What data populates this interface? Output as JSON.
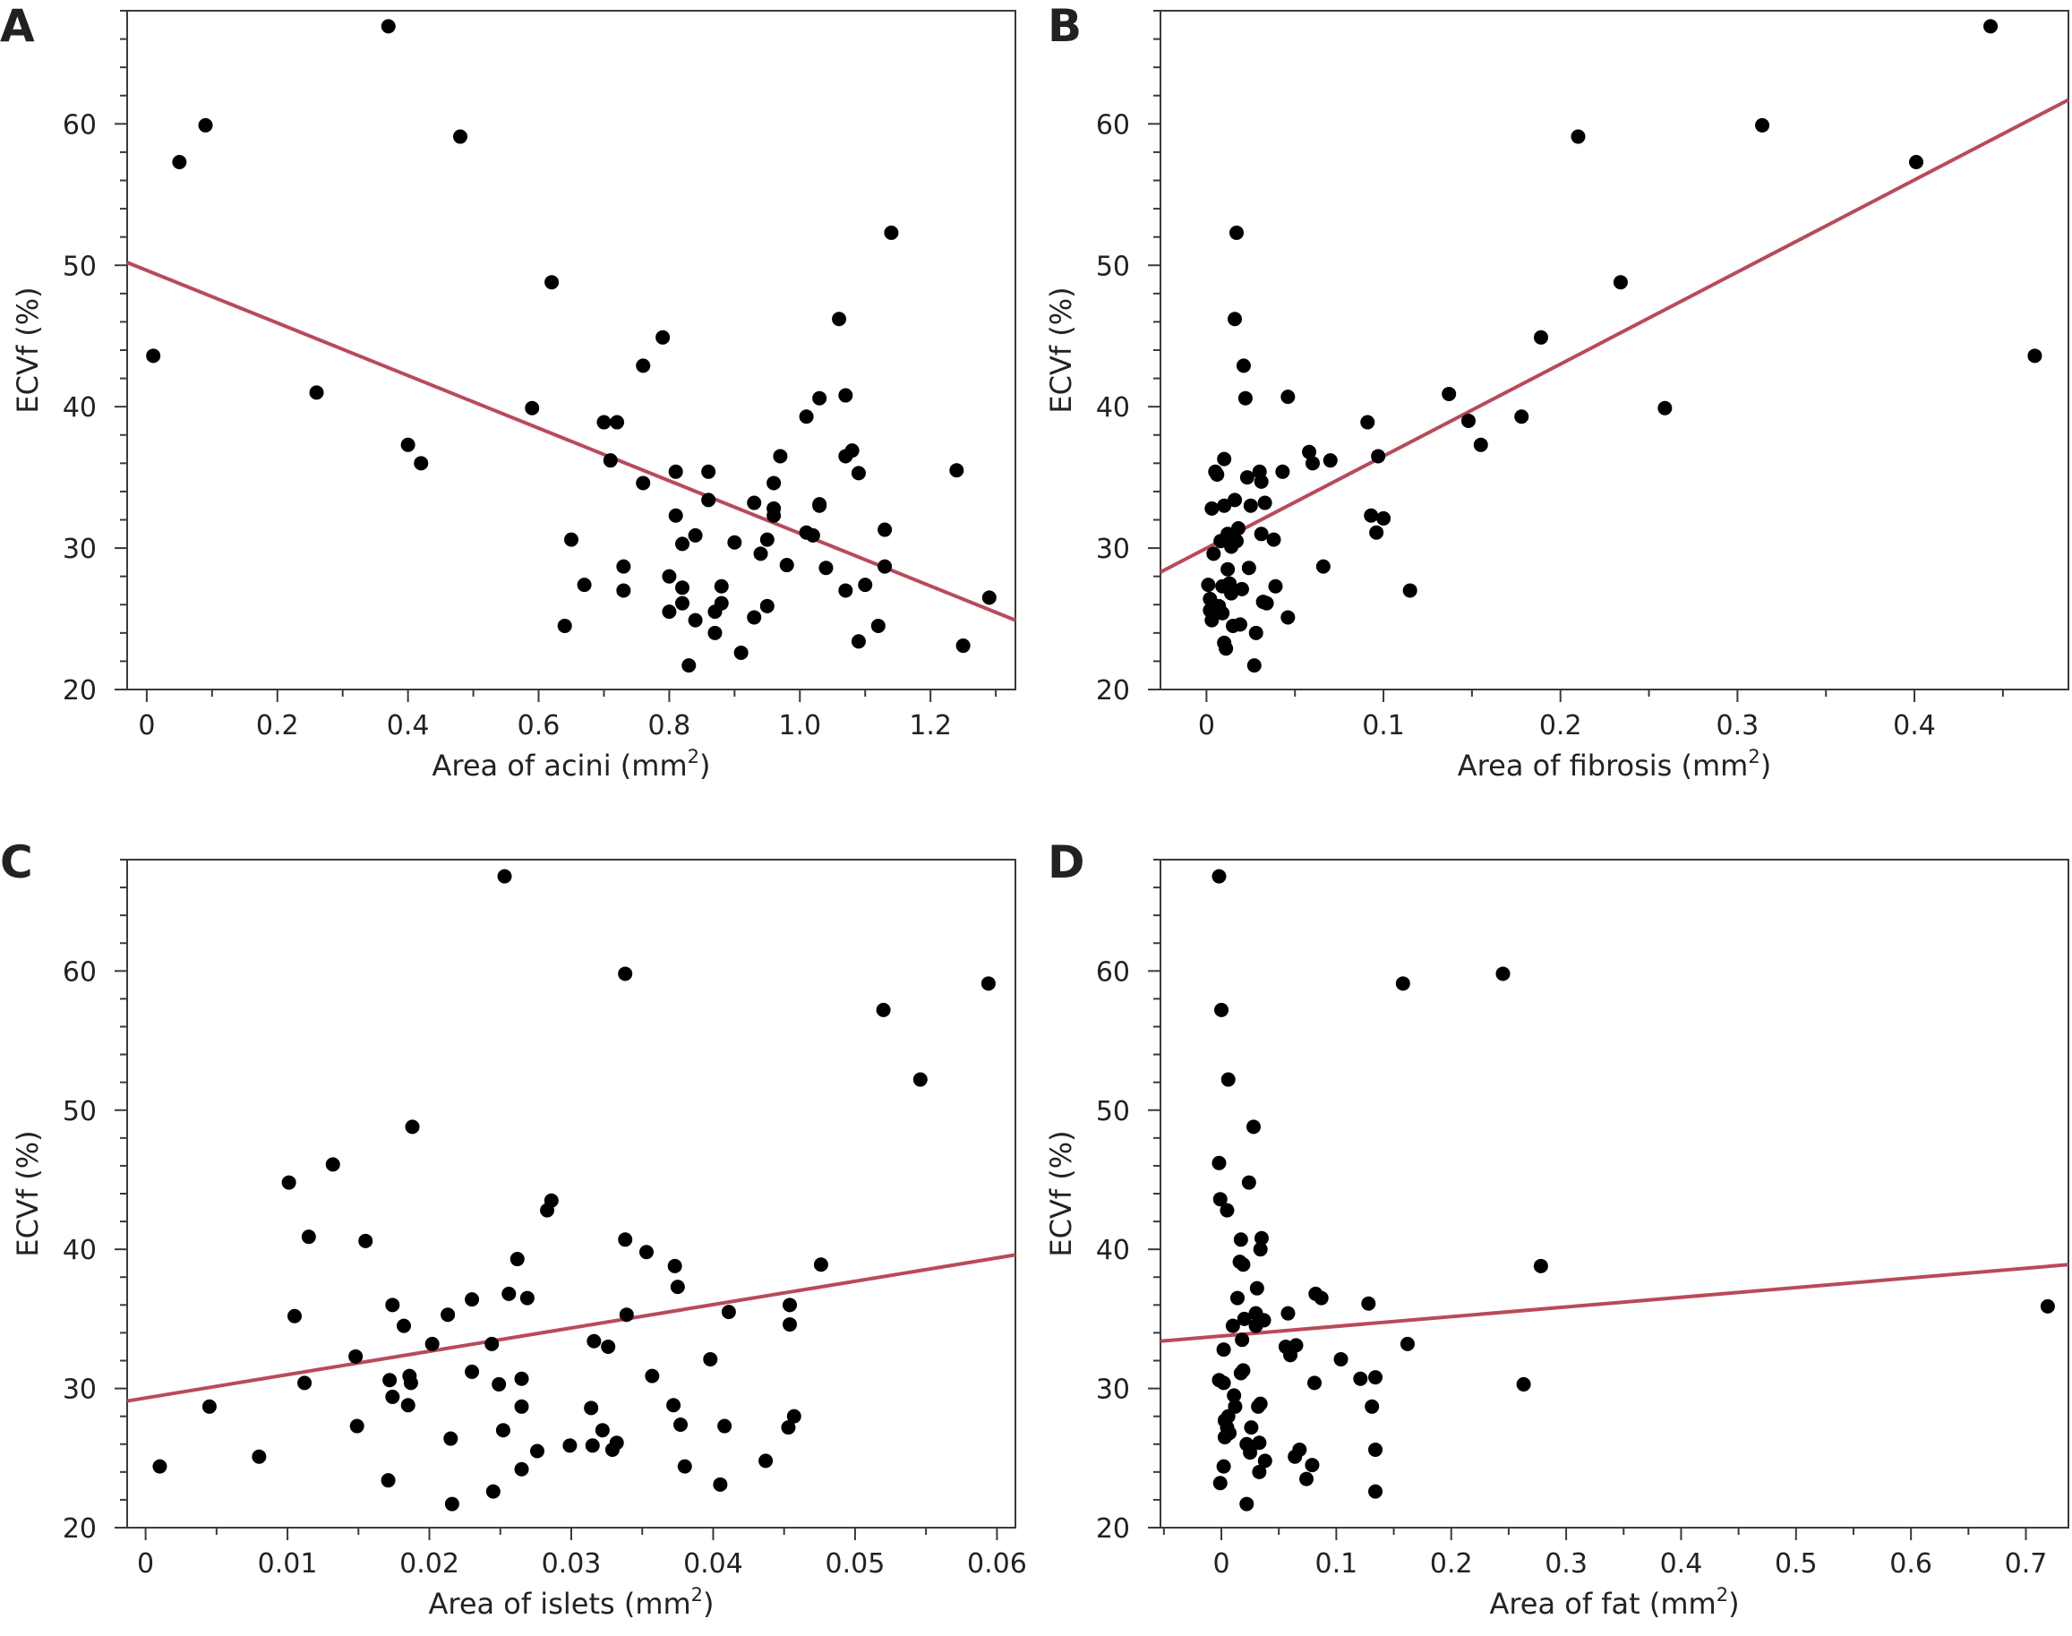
{
  "colors": {
    "points": "#000000",
    "fit_line": "#b94a5a",
    "axes": "#3a3a3a",
    "text": "#222222"
  },
  "chart_data": [
    {
      "type": "scatter",
      "panel": "A",
      "xlabel": "Area of acini (mm",
      "xlabel_sup": "2",
      "xlabel_end": ")",
      "ylabel": "ECVf (%)",
      "xlim": [
        -0.03,
        1.33
      ],
      "ylim": [
        20,
        68
      ],
      "xticks": [
        0,
        0.2,
        0.4,
        0.6,
        0.8,
        1.0,
        1.2
      ],
      "xtick_labels": [
        "0",
        "0.2",
        "0.4",
        "0.6",
        "0.8",
        "1.0",
        "1.2"
      ],
      "yticks": [
        20,
        30,
        40,
        50,
        60
      ],
      "ytick_labels": [
        "20",
        "30",
        "40",
        "50",
        "60"
      ],
      "fit_line": [
        [
          -0.03,
          50.2
        ],
        [
          1.33,
          24.9
        ]
      ],
      "points": [
        [
          0.01,
          43.6
        ],
        [
          0.05,
          57.3
        ],
        [
          0.09,
          59.9
        ],
        [
          0.26,
          41.0
        ],
        [
          0.37,
          66.9
        ],
        [
          0.4,
          37.3
        ],
        [
          0.42,
          36.0
        ],
        [
          0.48,
          59.1
        ],
        [
          0.59,
          39.9
        ],
        [
          0.62,
          48.8
        ],
        [
          0.64,
          24.5
        ],
        [
          0.65,
          30.6
        ],
        [
          0.67,
          27.4
        ],
        [
          0.7,
          38.9
        ],
        [
          0.71,
          36.2
        ],
        [
          0.72,
          38.9
        ],
        [
          0.73,
          28.7
        ],
        [
          0.73,
          27.0
        ],
        [
          0.76,
          34.6
        ],
        [
          0.76,
          42.9
        ],
        [
          0.79,
          44.9
        ],
        [
          0.8,
          25.5
        ],
        [
          0.8,
          28.0
        ],
        [
          0.81,
          32.3
        ],
        [
          0.81,
          35.4
        ],
        [
          0.82,
          27.2
        ],
        [
          0.82,
          30.3
        ],
        [
          0.82,
          26.1
        ],
        [
          0.83,
          21.7
        ],
        [
          0.84,
          30.9
        ],
        [
          0.84,
          24.9
        ],
        [
          0.86,
          33.4
        ],
        [
          0.86,
          35.4
        ],
        [
          0.87,
          24.0
        ],
        [
          0.87,
          25.5
        ],
        [
          0.88,
          26.1
        ],
        [
          0.88,
          27.3
        ],
        [
          0.9,
          30.4
        ],
        [
          0.91,
          22.6
        ],
        [
          0.93,
          33.2
        ],
        [
          0.93,
          25.1
        ],
        [
          0.94,
          29.6
        ],
        [
          0.95,
          30.6
        ],
        [
          0.95,
          25.9
        ],
        [
          0.96,
          32.8
        ],
        [
          0.96,
          34.6
        ],
        [
          0.97,
          36.5
        ],
        [
          0.96,
          32.3
        ],
        [
          0.98,
          28.8
        ],
        [
          1.01,
          39.3
        ],
        [
          1.01,
          31.1
        ],
        [
          1.02,
          30.9
        ],
        [
          1.03,
          40.6
        ],
        [
          1.03,
          33.1
        ],
        [
          1.03,
          33.0
        ],
        [
          1.04,
          28.6
        ],
        [
          1.06,
          46.2
        ],
        [
          1.07,
          40.8
        ],
        [
          1.07,
          36.5
        ],
        [
          1.08,
          36.9
        ],
        [
          1.07,
          27.0
        ],
        [
          1.09,
          35.3
        ],
        [
          1.09,
          23.4
        ],
        [
          1.1,
          27.4
        ],
        [
          1.12,
          24.5
        ],
        [
          1.13,
          28.7
        ],
        [
          1.13,
          31.3
        ],
        [
          1.14,
          52.3
        ],
        [
          1.24,
          35.5
        ],
        [
          1.25,
          23.1
        ],
        [
          1.29,
          26.5
        ]
      ]
    },
    {
      "type": "scatter",
      "panel": "B",
      "xlabel": "Area of fibrosis (mm",
      "xlabel_sup": "2",
      "xlabel_end": ")",
      "ylabel": "ECVf (%)",
      "xlim": [
        -0.026,
        0.487
      ],
      "ylim": [
        20,
        68
      ],
      "xticks": [
        0,
        0.1,
        0.2,
        0.3,
        0.4
      ],
      "xtick_labels": [
        "0",
        "0.1",
        "0.2",
        "0.3",
        "0.4"
      ],
      "yticks": [
        20,
        30,
        40,
        50,
        60
      ],
      "ytick_labels": [
        "20",
        "30",
        "40",
        "50",
        "60"
      ],
      "fit_line": [
        [
          -0.026,
          28.3
        ],
        [
          0.487,
          61.7
        ]
      ],
      "points": [
        [
          0.001,
          27.4
        ],
        [
          0.002,
          25.6
        ],
        [
          0.002,
          26.4
        ],
        [
          0.003,
          24.9
        ],
        [
          0.003,
          32.8
        ],
        [
          0.004,
          29.6
        ],
        [
          0.005,
          35.4
        ],
        [
          0.006,
          35.2
        ],
        [
          0.007,
          25.9
        ],
        [
          0.008,
          30.5
        ],
        [
          0.009,
          25.4
        ],
        [
          0.009,
          27.3
        ],
        [
          0.01,
          33.0
        ],
        [
          0.01,
          36.3
        ],
        [
          0.01,
          23.3
        ],
        [
          0.011,
          22.9
        ],
        [
          0.012,
          31.0
        ],
        [
          0.012,
          28.5
        ],
        [
          0.013,
          27.5
        ],
        [
          0.014,
          26.8
        ],
        [
          0.014,
          30.1
        ],
        [
          0.015,
          24.5
        ],
        [
          0.016,
          33.4
        ],
        [
          0.016,
          46.2
        ],
        [
          0.017,
          52.3
        ],
        [
          0.017,
          30.5
        ],
        [
          0.018,
          31.4
        ],
        [
          0.019,
          24.6
        ],
        [
          0.02,
          27.1
        ],
        [
          0.021,
          42.9
        ],
        [
          0.022,
          40.6
        ],
        [
          0.023,
          35.0
        ],
        [
          0.024,
          28.6
        ],
        [
          0.025,
          33.0
        ],
        [
          0.027,
          21.7
        ],
        [
          0.028,
          24.0
        ],
        [
          0.03,
          35.4
        ],
        [
          0.031,
          31.0
        ],
        [
          0.031,
          34.7
        ],
        [
          0.032,
          26.2
        ],
        [
          0.033,
          33.2
        ],
        [
          0.034,
          26.1
        ],
        [
          0.038,
          30.6
        ],
        [
          0.039,
          27.3
        ],
        [
          0.043,
          35.4
        ],
        [
          0.046,
          25.1
        ],
        [
          0.046,
          40.7
        ],
        [
          0.058,
          36.8
        ],
        [
          0.06,
          36.0
        ],
        [
          0.066,
          28.7
        ],
        [
          0.07,
          36.2
        ],
        [
          0.091,
          38.9
        ],
        [
          0.093,
          32.3
        ],
        [
          0.096,
          31.1
        ],
        [
          0.097,
          36.5
        ],
        [
          0.1,
          32.1
        ],
        [
          0.115,
          27.0
        ],
        [
          0.137,
          40.9
        ],
        [
          0.148,
          39.0
        ],
        [
          0.155,
          37.3
        ],
        [
          0.178,
          39.3
        ],
        [
          0.189,
          44.9
        ],
        [
          0.21,
          59.1
        ],
        [
          0.234,
          48.8
        ],
        [
          0.259,
          39.9
        ],
        [
          0.314,
          59.9
        ],
        [
          0.401,
          57.3
        ],
        [
          0.443,
          66.9
        ],
        [
          0.468,
          43.6
        ]
      ]
    },
    {
      "type": "scatter",
      "panel": "C",
      "xlabel": "Area of islets (mm",
      "xlabel_sup": "2",
      "xlabel_end": ")",
      "ylabel": "ECVf (%)",
      "xlim": [
        -0.0013,
        0.0613
      ],
      "ylim": [
        20,
        68
      ],
      "xticks": [
        0,
        0.01,
        0.02,
        0.03,
        0.04,
        0.05,
        0.06
      ],
      "xtick_labels": [
        "0",
        "0.01",
        "0.02",
        "0.03",
        "0.04",
        "0.05",
        "0.06"
      ],
      "yticks": [
        20,
        30,
        40,
        50,
        60
      ],
      "ytick_labels": [
        "20",
        "30",
        "40",
        "50",
        "60"
      ],
      "fit_line": [
        [
          -0.0013,
          29.1
        ],
        [
          0.0613,
          39.6
        ]
      ],
      "points": [
        [
          0.001,
          24.4
        ],
        [
          0.0045,
          28.7
        ],
        [
          0.008,
          25.1
        ],
        [
          0.0101,
          44.8
        ],
        [
          0.0105,
          35.2
        ],
        [
          0.0112,
          30.4
        ],
        [
          0.0115,
          40.9
        ],
        [
          0.0132,
          46.1
        ],
        [
          0.0148,
          32.3
        ],
        [
          0.0149,
          27.3
        ],
        [
          0.0155,
          40.6
        ],
        [
          0.0171,
          23.4
        ],
        [
          0.0172,
          30.6
        ],
        [
          0.0174,
          36.0
        ],
        [
          0.0174,
          29.4
        ],
        [
          0.0182,
          34.5
        ],
        [
          0.0185,
          28.8
        ],
        [
          0.0186,
          30.9
        ],
        [
          0.0187,
          30.4
        ],
        [
          0.0188,
          48.8
        ],
        [
          0.0202,
          33.2
        ],
        [
          0.0213,
          35.3
        ],
        [
          0.0215,
          26.4
        ],
        [
          0.0216,
          21.7
        ],
        [
          0.023,
          36.4
        ],
        [
          0.023,
          31.2
        ],
        [
          0.0244,
          33.2
        ],
        [
          0.0245,
          22.6
        ],
        [
          0.0249,
          30.3
        ],
        [
          0.0252,
          27.0
        ],
        [
          0.0253,
          66.8
        ],
        [
          0.0256,
          36.8
        ],
        [
          0.0262,
          39.3
        ],
        [
          0.0265,
          30.7
        ],
        [
          0.0265,
          28.7
        ],
        [
          0.0265,
          24.2
        ],
        [
          0.0269,
          36.5
        ],
        [
          0.0276,
          25.5
        ],
        [
          0.0283,
          42.8
        ],
        [
          0.0286,
          43.5
        ],
        [
          0.0299,
          25.9
        ],
        [
          0.0314,
          28.6
        ],
        [
          0.0315,
          25.9
        ],
        [
          0.0316,
          33.4
        ],
        [
          0.0322,
          27.0
        ],
        [
          0.0326,
          33.0
        ],
        [
          0.0329,
          25.6
        ],
        [
          0.0332,
          26.1
        ],
        [
          0.0338,
          59.8
        ],
        [
          0.0338,
          40.7
        ],
        [
          0.0339,
          35.3
        ],
        [
          0.0353,
          39.8
        ],
        [
          0.0357,
          30.9
        ],
        [
          0.0372,
          28.8
        ],
        [
          0.0373,
          38.8
        ],
        [
          0.0375,
          37.3
        ],
        [
          0.0377,
          27.4
        ],
        [
          0.038,
          24.4
        ],
        [
          0.0398,
          32.1
        ],
        [
          0.0405,
          23.1
        ],
        [
          0.0408,
          27.3
        ],
        [
          0.0411,
          35.5
        ],
        [
          0.0437,
          24.8
        ],
        [
          0.0453,
          27.2
        ],
        [
          0.0454,
          36.0
        ],
        [
          0.0454,
          34.6
        ],
        [
          0.0457,
          28.0
        ],
        [
          0.0476,
          38.9
        ],
        [
          0.052,
          57.2
        ],
        [
          0.0546,
          52.2
        ],
        [
          0.0594,
          59.1
        ]
      ]
    },
    {
      "type": "scatter",
      "panel": "D",
      "xlabel": "Area of fat (mm",
      "xlabel_sup": "2",
      "xlabel_end": ")",
      "ylabel": "ECVf (%)",
      "xlim": [
        -0.053,
        0.737
      ],
      "ylim": [
        20,
        68
      ],
      "xticks": [
        0,
        0.1,
        0.2,
        0.3,
        0.4,
        0.5,
        0.6,
        0.7
      ],
      "xtick_labels": [
        "0",
        "0.1",
        "0.2",
        "0.3",
        "0.4",
        "0.5",
        "0.6",
        "0.7"
      ],
      "yticks": [
        20,
        30,
        40,
        50,
        60
      ],
      "ytick_labels": [
        "20",
        "30",
        "40",
        "50",
        "60"
      ],
      "fit_line": [
        [
          -0.053,
          33.4
        ],
        [
          0.737,
          38.9
        ]
      ],
      "points": [
        [
          -0.002,
          66.8
        ],
        [
          0.0,
          57.2
        ],
        [
          0.006,
          52.2
        ],
        [
          -0.002,
          46.2
        ],
        [
          -0.001,
          43.6
        ],
        [
          0.005,
          42.8
        ],
        [
          0.017,
          40.7
        ],
        [
          0.019,
          38.9
        ],
        [
          0.016,
          39.1
        ],
        [
          -0.002,
          30.6
        ],
        [
          0.002,
          32.8
        ],
        [
          0.002,
          30.4
        ],
        [
          0.003,
          27.7
        ],
        [
          0.003,
          26.5
        ],
        [
          0.002,
          24.4
        ],
        [
          -0.001,
          23.2
        ],
        [
          0.005,
          27.2
        ],
        [
          0.006,
          28.0
        ],
        [
          0.007,
          26.8
        ],
        [
          0.01,
          34.5
        ],
        [
          0.011,
          29.5
        ],
        [
          0.012,
          28.7
        ],
        [
          0.014,
          36.5
        ],
        [
          0.017,
          31.1
        ],
        [
          0.018,
          33.5
        ],
        [
          0.019,
          31.3
        ],
        [
          0.02,
          35.0
        ],
        [
          0.022,
          21.7
        ],
        [
          0.022,
          26.0
        ],
        [
          0.024,
          44.8
        ],
        [
          0.025,
          25.4
        ],
        [
          0.026,
          27.2
        ],
        [
          0.028,
          48.8
        ],
        [
          0.03,
          35.4
        ],
        [
          0.03,
          34.5
        ],
        [
          0.031,
          37.2
        ],
        [
          0.032,
          28.7
        ],
        [
          0.033,
          26.1
        ],
        [
          0.033,
          24.0
        ],
        [
          0.034,
          28.9
        ],
        [
          0.034,
          40.0
        ],
        [
          0.035,
          40.8
        ],
        [
          0.037,
          34.9
        ],
        [
          0.038,
          24.8
        ],
        [
          0.056,
          33.0
        ],
        [
          0.058,
          35.4
        ],
        [
          0.06,
          32.4
        ],
        [
          0.064,
          25.1
        ],
        [
          0.065,
          33.1
        ],
        [
          0.068,
          25.6
        ],
        [
          0.074,
          23.5
        ],
        [
          0.079,
          24.5
        ],
        [
          0.081,
          30.4
        ],
        [
          0.082,
          36.8
        ],
        [
          0.087,
          36.5
        ],
        [
          0.104,
          32.1
        ],
        [
          0.121,
          30.7
        ],
        [
          0.128,
          36.1
        ],
        [
          0.131,
          28.7
        ],
        [
          0.134,
          25.6
        ],
        [
          0.134,
          30.8
        ],
        [
          0.134,
          22.6
        ],
        [
          0.162,
          33.2
        ],
        [
          0.158,
          59.1
        ],
        [
          0.245,
          59.8
        ],
        [
          0.263,
          30.3
        ],
        [
          0.278,
          38.8
        ],
        [
          0.719,
          35.9
        ]
      ]
    }
  ]
}
